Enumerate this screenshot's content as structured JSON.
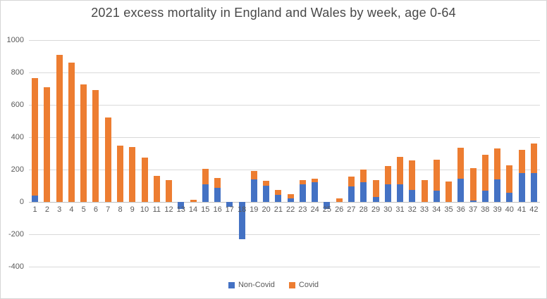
{
  "chart_data": {
    "type": "bar",
    "stacked": true,
    "title": "2021 excess mortality in England and Wales by week, age 0-64",
    "xlabel": "",
    "ylabel": "",
    "ylim": [
      -400,
      1000
    ],
    "yticks": [
      1000,
      800,
      600,
      400,
      200,
      0,
      -200,
      -400
    ],
    "grid": true,
    "legend_position": "bottom",
    "categories": [
      1,
      2,
      3,
      4,
      5,
      6,
      7,
      8,
      9,
      10,
      11,
      12,
      13,
      14,
      15,
      16,
      17,
      18,
      19,
      20,
      21,
      22,
      23,
      24,
      25,
      26,
      27,
      28,
      29,
      30,
      31,
      32,
      33,
      34,
      35,
      36,
      37,
      38,
      39,
      40,
      41,
      42
    ],
    "series": [
      {
        "name": "Non-Covid",
        "color": "#4472C4",
        "values": [
          40,
          0,
          0,
          0,
          0,
          0,
          0,
          0,
          0,
          0,
          0,
          0,
          -45,
          0,
          110,
          85,
          -30,
          -230,
          140,
          100,
          45,
          20,
          110,
          120,
          -45,
          0,
          95,
          120,
          30,
          110,
          110,
          75,
          0,
          70,
          0,
          145,
          10,
          70,
          140,
          55,
          180,
          180
        ]
      },
      {
        "name": "Covid",
        "color": "#ED7D31",
        "values": [
          725,
          710,
          910,
          860,
          725,
          690,
          520,
          350,
          340,
          275,
          160,
          135,
          0,
          15,
          95,
          65,
          0,
          0,
          50,
          30,
          30,
          30,
          25,
          25,
          0,
          20,
          60,
          80,
          105,
          110,
          170,
          180,
          135,
          190,
          125,
          190,
          200,
          220,
          190,
          170,
          140,
          180
        ]
      }
    ]
  }
}
